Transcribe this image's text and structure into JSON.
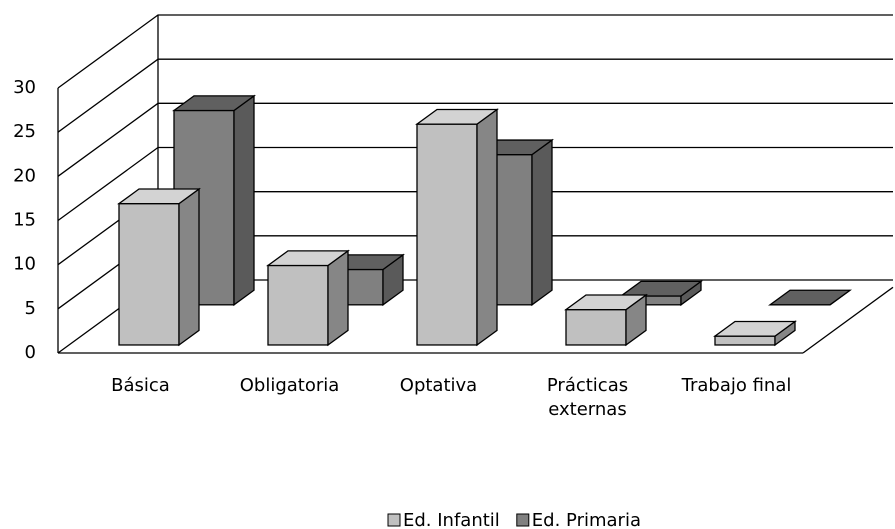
{
  "chart_data": {
    "type": "bar3d",
    "categories": [
      "Básica",
      "Obligatoria",
      "Optativa",
      "Prácticas externas",
      "Trabajo final"
    ],
    "series": [
      {
        "name": "Ed. Infantil",
        "color": "#c0c0c0",
        "values": [
          16,
          9,
          25,
          4,
          1
        ]
      },
      {
        "name": "Ed. Primaria",
        "color": "#808080",
        "values": [
          22,
          4,
          17,
          1,
          0
        ]
      }
    ],
    "ylim": [
      0,
      30
    ],
    "yticks": [
      0,
      5,
      10,
      15,
      20,
      25,
      30
    ],
    "grid": true,
    "legend": "bottom"
  }
}
